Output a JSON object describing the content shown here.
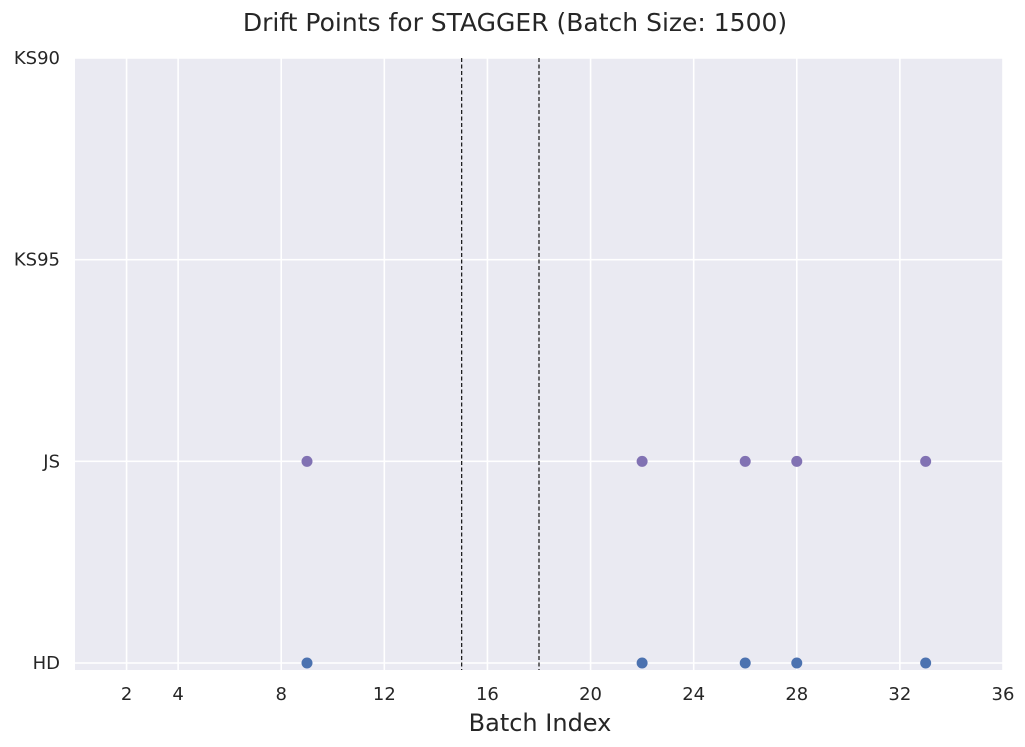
{
  "chart_data": {
    "type": "scatter",
    "title": "Drift Points for STAGGER (Batch Size: 1500)",
    "xlabel": "Batch Index",
    "ylabel": "",
    "xlim": [
      0,
      36
    ],
    "xticks": [
      2,
      4,
      8,
      12,
      16,
      20,
      24,
      28,
      32,
      36
    ],
    "categories": [
      "HD",
      "JS",
      "KS95",
      "KS90"
    ],
    "series": [
      {
        "category": "HD",
        "color": "#4c72b0",
        "x": [
          9,
          22,
          26,
          28,
          33
        ]
      },
      {
        "category": "JS",
        "color": "#8172b3",
        "x": [
          9,
          22,
          26,
          28,
          33
        ]
      }
    ],
    "vlines": [
      15,
      18
    ],
    "grid": true,
    "background": "#eaeaf2",
    "legend": "none"
  }
}
